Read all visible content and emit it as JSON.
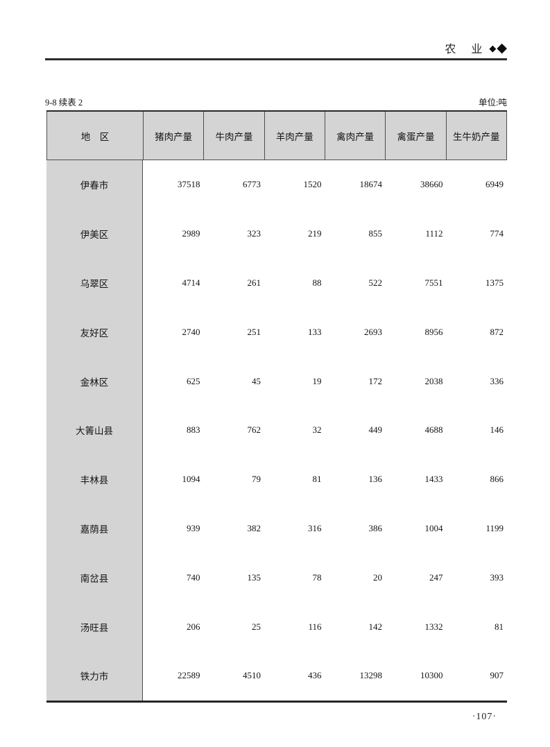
{
  "masthead": {
    "section_title": "农　业",
    "diamond_small": "◆",
    "diamond_large": "◆"
  },
  "caption": {
    "table_label": "9-8 续表 2",
    "unit_label": "单位:吨"
  },
  "table": {
    "columns": [
      "地　区",
      "猪肉产量",
      "牛肉产量",
      "羊肉产量",
      "禽肉产量",
      "禽蛋产量",
      "生牛奶产量"
    ],
    "rows": [
      {
        "region": "伊春市",
        "values": [
          "37518",
          "6773",
          "1520",
          "18674",
          "38660",
          "6949"
        ]
      },
      {
        "region": "伊美区",
        "values": [
          "2989",
          "323",
          "219",
          "855",
          "1112",
          "774"
        ]
      },
      {
        "region": "乌翠区",
        "values": [
          "4714",
          "261",
          "88",
          "522",
          "7551",
          "1375"
        ]
      },
      {
        "region": "友好区",
        "values": [
          "2740",
          "251",
          "133",
          "2693",
          "8956",
          "872"
        ]
      },
      {
        "region": "金林区",
        "values": [
          "625",
          "45",
          "19",
          "172",
          "2038",
          "336"
        ]
      },
      {
        "region": "大箐山县",
        "values": [
          "883",
          "762",
          "32",
          "449",
          "4688",
          "146"
        ]
      },
      {
        "region": "丰林县",
        "values": [
          "1094",
          "79",
          "81",
          "136",
          "1433",
          "866"
        ]
      },
      {
        "region": "嘉荫县",
        "values": [
          "939",
          "382",
          "316",
          "386",
          "1004",
          "1199"
        ]
      },
      {
        "region": "南岔县",
        "values": [
          "740",
          "135",
          "78",
          "20",
          "247",
          "393"
        ]
      },
      {
        "region": "汤旺县",
        "values": [
          "206",
          "25",
          "116",
          "142",
          "1332",
          "81"
        ]
      },
      {
        "region": "铁力市",
        "values": [
          "22589",
          "4510",
          "436",
          "13298",
          "10300",
          "907"
        ]
      }
    ],
    "colors": {
      "header_bg": "#d4d4d4",
      "border_outer": "#262626",
      "border_inner": "#4d4d4d"
    }
  },
  "footer": {
    "page_number": "·107·"
  }
}
